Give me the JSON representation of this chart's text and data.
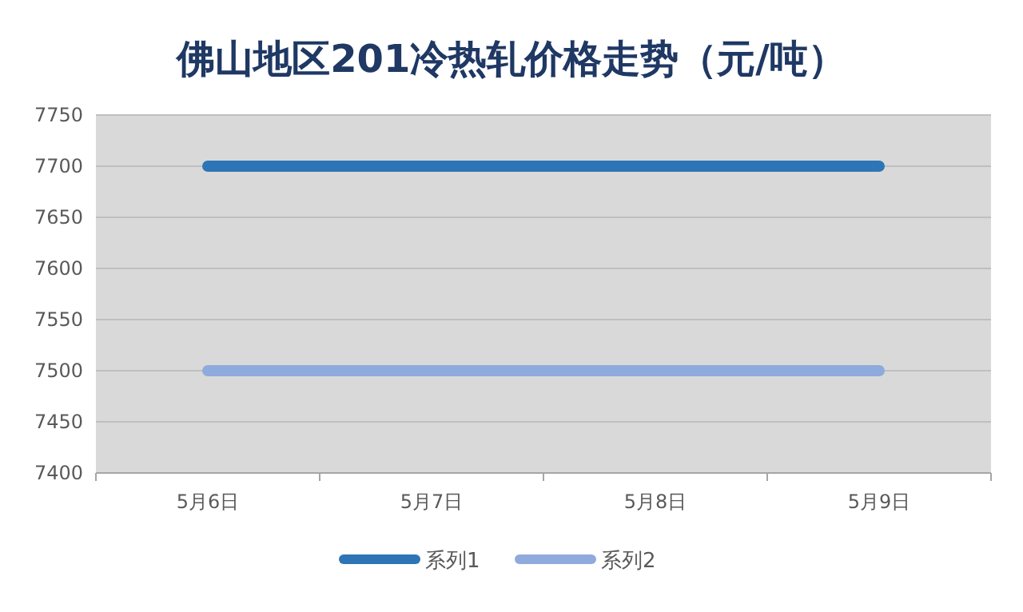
{
  "chart_data": {
    "type": "line",
    "title": "佛山地区201冷热轧价格走势（元/吨）",
    "categories": [
      "5月6日",
      "5月7日",
      "5月8日",
      "5月9日"
    ],
    "series": [
      {
        "name": "系列1",
        "color": "#2e75b6",
        "values": [
          7700,
          7700,
          7700,
          7700
        ]
      },
      {
        "name": "系列2",
        "color": "#8faadc",
        "values": [
          7500,
          7500,
          7500,
          7500
        ]
      }
    ],
    "ylim": [
      7400,
      7750
    ],
    "yticks": [
      7400,
      7450,
      7500,
      7550,
      7600,
      7650,
      7700,
      7750
    ],
    "grid": "y",
    "legend": "bottom",
    "marker": "none",
    "line_style": "solid"
  }
}
